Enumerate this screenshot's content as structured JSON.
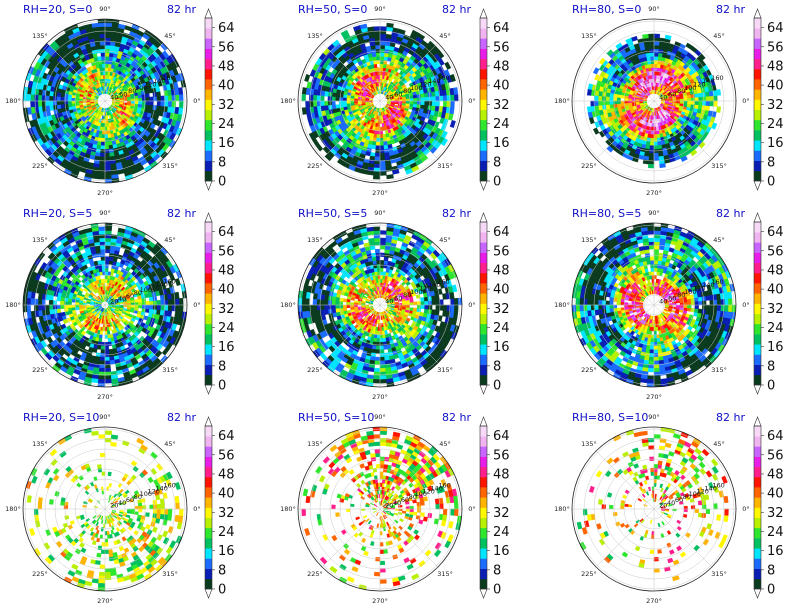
{
  "chart_data": {
    "type": "polar-filled-contour",
    "common": {
      "angle_labels": [
        "90°",
        "45°",
        "0°",
        "315°",
        "270°",
        "225°",
        "180°",
        "135°"
      ],
      "colorbar_ticks": [
        0,
        8,
        16,
        24,
        32,
        40,
        48,
        56,
        64
      ],
      "colorbar_colors": [
        "#0b3b1f",
        "#0a1eb4",
        "#1b6bff",
        "#00e5ff",
        "#00c060",
        "#2ee62e",
        "#b8f000",
        "#fff700",
        "#ffb400",
        "#ff6400",
        "#ff1400",
        "#ff1e8c",
        "#e81ee8",
        "#c864ff",
        "#f0b4f0",
        "#f7d9f7"
      ]
    },
    "panels": [
      {
        "id": "p1",
        "title": "RH=20, S=0",
        "time": "82 hr",
        "shape": "ring",
        "inner": 0.1,
        "outer": 0.98,
        "fill": 0.98,
        "peak": 0.55,
        "sector": 0,
        "rlabels": [
          "40",
          "60",
          "80",
          "100",
          "120",
          "140",
          "160"
        ]
      },
      {
        "id": "p2",
        "title": "RH=50, S=0",
        "time": "82 hr",
        "shape": "ring",
        "inner": 0.11,
        "outer": 0.92,
        "fill": 0.97,
        "peak": 0.7,
        "sector": 0,
        "rlabels": [
          "40",
          "60",
          "80",
          "100",
          "120",
          "140",
          "160"
        ]
      },
      {
        "id": "p3",
        "title": "RH=80, S=0",
        "time": "82 hr",
        "shape": "ring",
        "inner": 0.09,
        "outer": 0.78,
        "fill": 0.99,
        "peak": 0.9,
        "sector": 0,
        "rlabels": [
          "40",
          "60",
          "80",
          "100",
          "120",
          "140",
          "160"
        ]
      },
      {
        "id": "p4",
        "title": "RH=20, S=5",
        "time": "82 hr",
        "shape": "ring",
        "inner": 0.06,
        "outer": 1.0,
        "fill": 0.9,
        "peak": 0.55,
        "sector": 0,
        "rlabels": [
          "20",
          "40",
          "60",
          "80",
          "100",
          "120",
          "140",
          "160"
        ]
      },
      {
        "id": "p5",
        "title": "RH=50, S=5",
        "time": "82 hr",
        "shape": "ring",
        "inner": 0.11,
        "outer": 1.0,
        "fill": 0.9,
        "peak": 0.7,
        "sector": 0,
        "rlabels": [
          "40",
          "60",
          "80",
          "100",
          "120",
          "140",
          "160"
        ]
      },
      {
        "id": "p6",
        "title": "RH=80, S=5",
        "time": "82 hr",
        "shape": "ring",
        "inner": 0.12,
        "outer": 1.0,
        "fill": 0.92,
        "peak": 0.8,
        "sector": 0,
        "rlabels": [
          "40",
          "60",
          "80",
          "100",
          "120",
          "140",
          "160"
        ]
      },
      {
        "id": "p7",
        "title": "RH=20, S=10",
        "time": "82 hr",
        "shape": "sparse",
        "inner": 0.1,
        "outer": 1.0,
        "fill": 0.35,
        "peak": 0.55,
        "sector": 1,
        "rlabels": [
          "20",
          "40",
          "60",
          "80",
          "100",
          "120",
          "140",
          "160"
        ]
      },
      {
        "id": "p8",
        "title": "RH=50, S=10",
        "time": "82 hr",
        "shape": "sparse",
        "inner": 0.05,
        "outer": 1.0,
        "fill": 0.42,
        "peak": 0.8,
        "sector": 2,
        "rlabels": [
          "20",
          "40",
          "60",
          "80",
          "100",
          "120",
          "140",
          "160"
        ]
      },
      {
        "id": "p9",
        "title": "RH=80, S=10",
        "time": "82 hr",
        "shape": "sparse",
        "inner": 0.1,
        "outer": 1.0,
        "fill": 0.25,
        "peak": 0.8,
        "sector": 2,
        "rlabels": [
          "20",
          "40",
          "60",
          "80",
          "100",
          "120",
          "140",
          "160"
        ]
      }
    ]
  }
}
